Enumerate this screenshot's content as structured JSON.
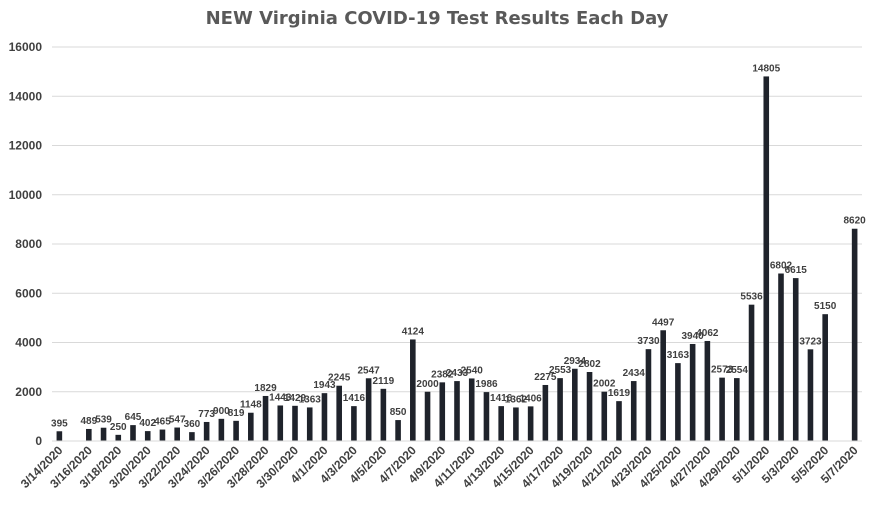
{
  "chart_data": {
    "type": "bar",
    "title": "NEW Virginia COVID-19 Test Results Each Day",
    "xlabel": "",
    "ylabel": "",
    "ylim": [
      0,
      16000
    ],
    "yticks": [
      "0",
      "2000",
      "4000",
      "6000",
      "8000",
      "10000",
      "12000",
      "14000",
      "16000"
    ],
    "grid": true,
    "legend": "none",
    "colors": {
      "bar": "#1f232b",
      "grid": "#d9d9d9",
      "text": "#404040",
      "title": "#595959"
    },
    "categories": [
      "3/14/2020",
      "3/15/2020",
      "3/16/2020",
      "3/17/2020",
      "3/18/2020",
      "3/19/2020",
      "3/20/2020",
      "3/21/2020",
      "3/22/2020",
      "3/23/2020",
      "3/24/2020",
      "3/25/2020",
      "3/26/2020",
      "3/27/2020",
      "3/28/2020",
      "3/29/2020",
      "3/30/2020",
      "3/31/2020",
      "4/1/2020",
      "4/2/2020",
      "4/3/2020",
      "4/4/2020",
      "4/5/2020",
      "4/6/2020",
      "4/7/2020",
      "4/8/2020",
      "4/9/2020",
      "4/10/2020",
      "4/11/2020",
      "4/12/2020",
      "4/13/2020",
      "4/14/2020",
      "4/15/2020",
      "4/16/2020",
      "4/17/2020",
      "4/18/2020",
      "4/19/2020",
      "4/20/2020",
      "4/21/2020",
      "4/22/2020",
      "4/23/2020",
      "4/24/2020",
      "4/25/2020",
      "4/26/2020",
      "4/27/2020",
      "4/28/2020",
      "4/29/2020",
      "4/30/2020",
      "5/1/2020",
      "5/2/2020",
      "5/3/2020",
      "5/4/2020",
      "5/5/2020",
      "5/6/2020",
      "5/7/2020"
    ],
    "xtick_labels": [
      "3/14/2020",
      "3/16/2020",
      "3/18/2020",
      "3/20/2020",
      "3/22/2020",
      "3/24/2020",
      "3/26/2020",
      "3/28/2020",
      "3/30/2020",
      "4/1/2020",
      "4/3/2020",
      "4/5/2020",
      "4/7/2020",
      "4/9/2020",
      "4/11/2020",
      "4/13/2020",
      "4/15/2020",
      "4/17/2020",
      "4/19/2020",
      "4/21/2020",
      "4/23/2020",
      "4/25/2020",
      "4/27/2020",
      "4/29/2020",
      "5/1/2020",
      "5/3/2020",
      "5/5/2020",
      "5/7/2020"
    ],
    "values": [
      395,
      null,
      489,
      539,
      250,
      645,
      402,
      465,
      547,
      360,
      773,
      900,
      819,
      1148,
      1829,
      1443,
      1429,
      1363,
      1943,
      2245,
      1416,
      2547,
      2119,
      850,
      4124,
      2000,
      2382,
      2433,
      2540,
      1986,
      1416,
      1362,
      1406,
      2275,
      2553,
      2934,
      2802,
      2002,
      1619,
      2434,
      3730,
      4497,
      3163,
      3940,
      4062,
      2573,
      2554,
      5536,
      14805,
      6802,
      6615,
      3723,
      5150,
      null,
      8620
    ]
  }
}
